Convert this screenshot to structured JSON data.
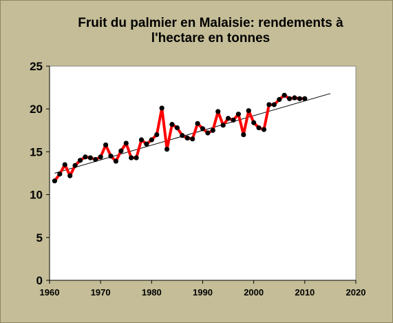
{
  "chart_data": {
    "type": "line",
    "title_lines": [
      "Fruit du palmier en Malaisie: rendements à",
      "l'hectare en tonnes"
    ],
    "xlabel": "",
    "ylabel": "",
    "xlim": [
      1960,
      2020
    ],
    "ylim": [
      0,
      25
    ],
    "x_ticks": [
      "1960",
      "1970",
      "1980",
      "1990",
      "2000",
      "2010",
      "2020"
    ],
    "y_ticks": [
      "0",
      "5",
      "10",
      "15",
      "20",
      "25"
    ],
    "grid": false,
    "legend": "none",
    "line_color": "#ff0000",
    "marker_color": "#000000",
    "trend_color": "#000000",
    "series": [
      {
        "x": [
          1961,
          1962,
          1963,
          1964,
          1965,
          1966,
          1967,
          1968,
          1969,
          1970,
          1971,
          1972,
          1973,
          1974,
          1975,
          1976,
          1977,
          1978,
          1979,
          1980,
          1981,
          1982,
          1983,
          1984,
          1985,
          1986,
          1987,
          1988,
          1989,
          1990,
          1991,
          1992,
          1993,
          1994,
          1995,
          1996,
          1997,
          1998,
          1999,
          2000,
          2001,
          2002,
          2003,
          2004,
          2005,
          2006,
          2007,
          2008,
          2009,
          2010
        ],
        "values": [
          11.6,
          12.4,
          13.5,
          12.2,
          13.4,
          14.0,
          14.4,
          14.3,
          14.1,
          14.4,
          15.8,
          14.5,
          13.9,
          15.1,
          16.0,
          14.3,
          14.3,
          16.4,
          15.9,
          16.4,
          17.0,
          20.1,
          15.3,
          18.2,
          17.8,
          16.9,
          16.6,
          16.5,
          18.3,
          17.7,
          17.2,
          17.5,
          19.7,
          18.1,
          18.9,
          18.7,
          19.4,
          17.0,
          19.8,
          18.4,
          17.8,
          17.6,
          20.5,
          20.5,
          21.1,
          21.6,
          21.2,
          21.3,
          21.2,
          21.2
        ]
      }
    ],
    "trendline": {
      "x": [
        1961,
        2015
      ],
      "values": [
        12.5,
        21.8
      ]
    }
  }
}
